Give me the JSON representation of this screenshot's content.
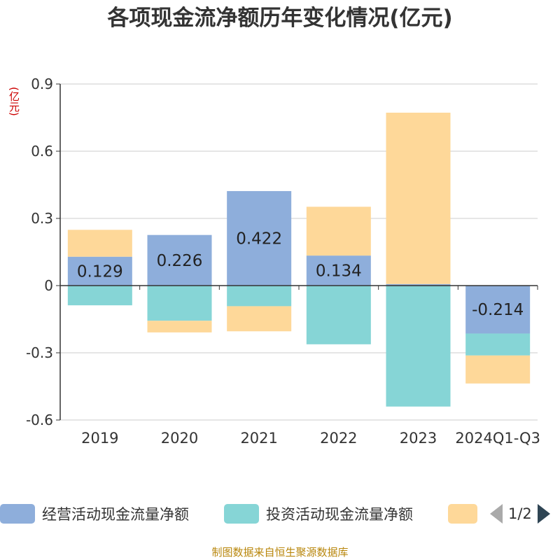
{
  "chart_data": {
    "type": "bar",
    "stacked": true,
    "title": "各项现金流净额历年变化情况(亿元)",
    "unit_label": "(亿元)",
    "categories": [
      "2019",
      "2020",
      "2021",
      "2022",
      "2023",
      "2024Q1-Q3"
    ],
    "ylim": [
      -0.6,
      0.9
    ],
    "yticks": [
      "0.9",
      "0.6",
      "0.3",
      "0",
      "-0.3",
      "-0.6"
    ],
    "grid": true,
    "legend_position": "bottom",
    "series": [
      {
        "name": "经营活动现金流量净额",
        "color": "#8eaedb",
        "values": [
          0.129,
          0.226,
          0.422,
          0.134,
          0.007,
          -0.214
        ],
        "labels": [
          "0.129",
          "0.226",
          "0.422",
          "0.134",
          "",
          "-0.214"
        ]
      },
      {
        "name": "投资活动现金流量净额",
        "color": "#86d5d6",
        "values": [
          -0.088,
          -0.157,
          -0.092,
          -0.262,
          -0.54,
          -0.098
        ],
        "labels": [
          "",
          "",
          "",
          "",
          "",
          ""
        ]
      },
      {
        "name": "",
        "color": "#fed899",
        "values": [
          0.12,
          -0.052,
          -0.112,
          0.218,
          0.765,
          -0.125
        ],
        "labels": [
          "",
          "",
          "",
          "",
          "",
          ""
        ]
      }
    ]
  },
  "legend": {
    "items": [
      {
        "label": "经营活动现金流量净额",
        "color": "#8eaedb"
      },
      {
        "label": "投资活动现金流量净额",
        "color": "#86d5d6"
      },
      {
        "label": "",
        "color": "#fed899"
      }
    ],
    "page_label": "1/2"
  },
  "source": "制图数据来自恒生聚源数据库"
}
